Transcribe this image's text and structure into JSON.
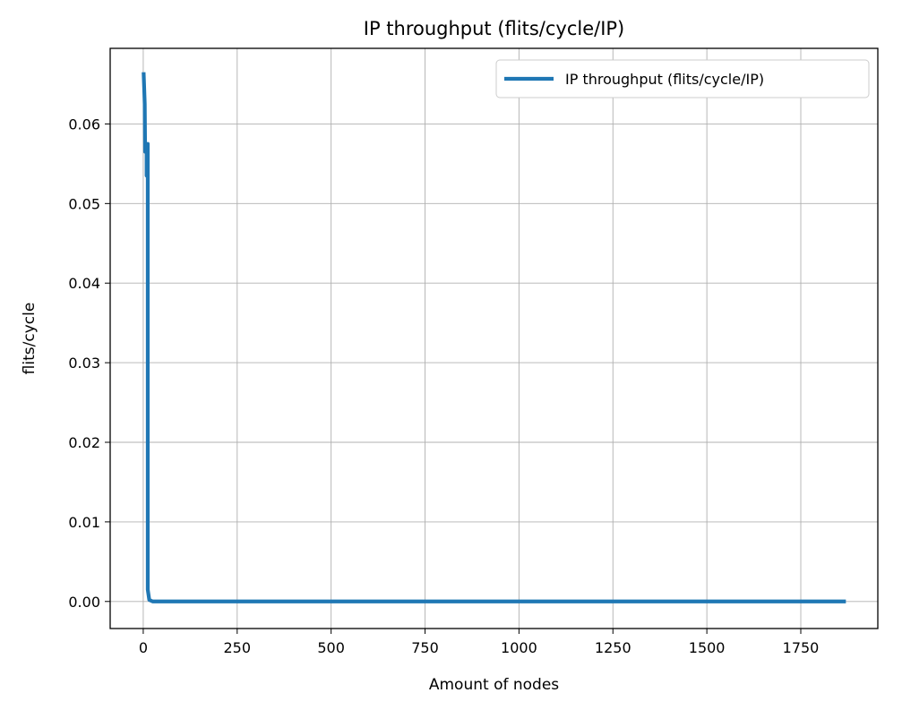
{
  "chart_data": {
    "type": "line",
    "title": "IP throughput (flits/cycle/IP)",
    "xlabel": "Amount of nodes",
    "ylabel": "flits/cycle",
    "xlim": [
      -88,
      1955
    ],
    "ylim": [
      -0.0034,
      0.0695
    ],
    "x_ticks": [
      0,
      250,
      500,
      750,
      1000,
      1250,
      1500,
      1750
    ],
    "y_ticks": [
      0.0,
      0.01,
      0.02,
      0.03,
      0.04,
      0.05,
      0.06
    ],
    "y_tick_labels": [
      "0.00",
      "0.01",
      "0.02",
      "0.03",
      "0.04",
      "0.05",
      "0.06"
    ],
    "grid": true,
    "legend_position": "top-right",
    "series": [
      {
        "name": "IP throughput (flits/cycle/IP)",
        "color": "#1f77b4",
        "x": [
          1,
          4,
          5,
          9,
          9,
          12,
          12,
          16,
          25,
          100,
          500,
          1000,
          1500,
          1870
        ],
        "y": [
          0.0665,
          0.0625,
          0.0565,
          0.0575,
          0.0535,
          0.0575,
          0.0015,
          0.0002,
          0.0,
          0.0,
          0.0,
          0.0,
          0.0,
          0.0
        ]
      }
    ]
  }
}
